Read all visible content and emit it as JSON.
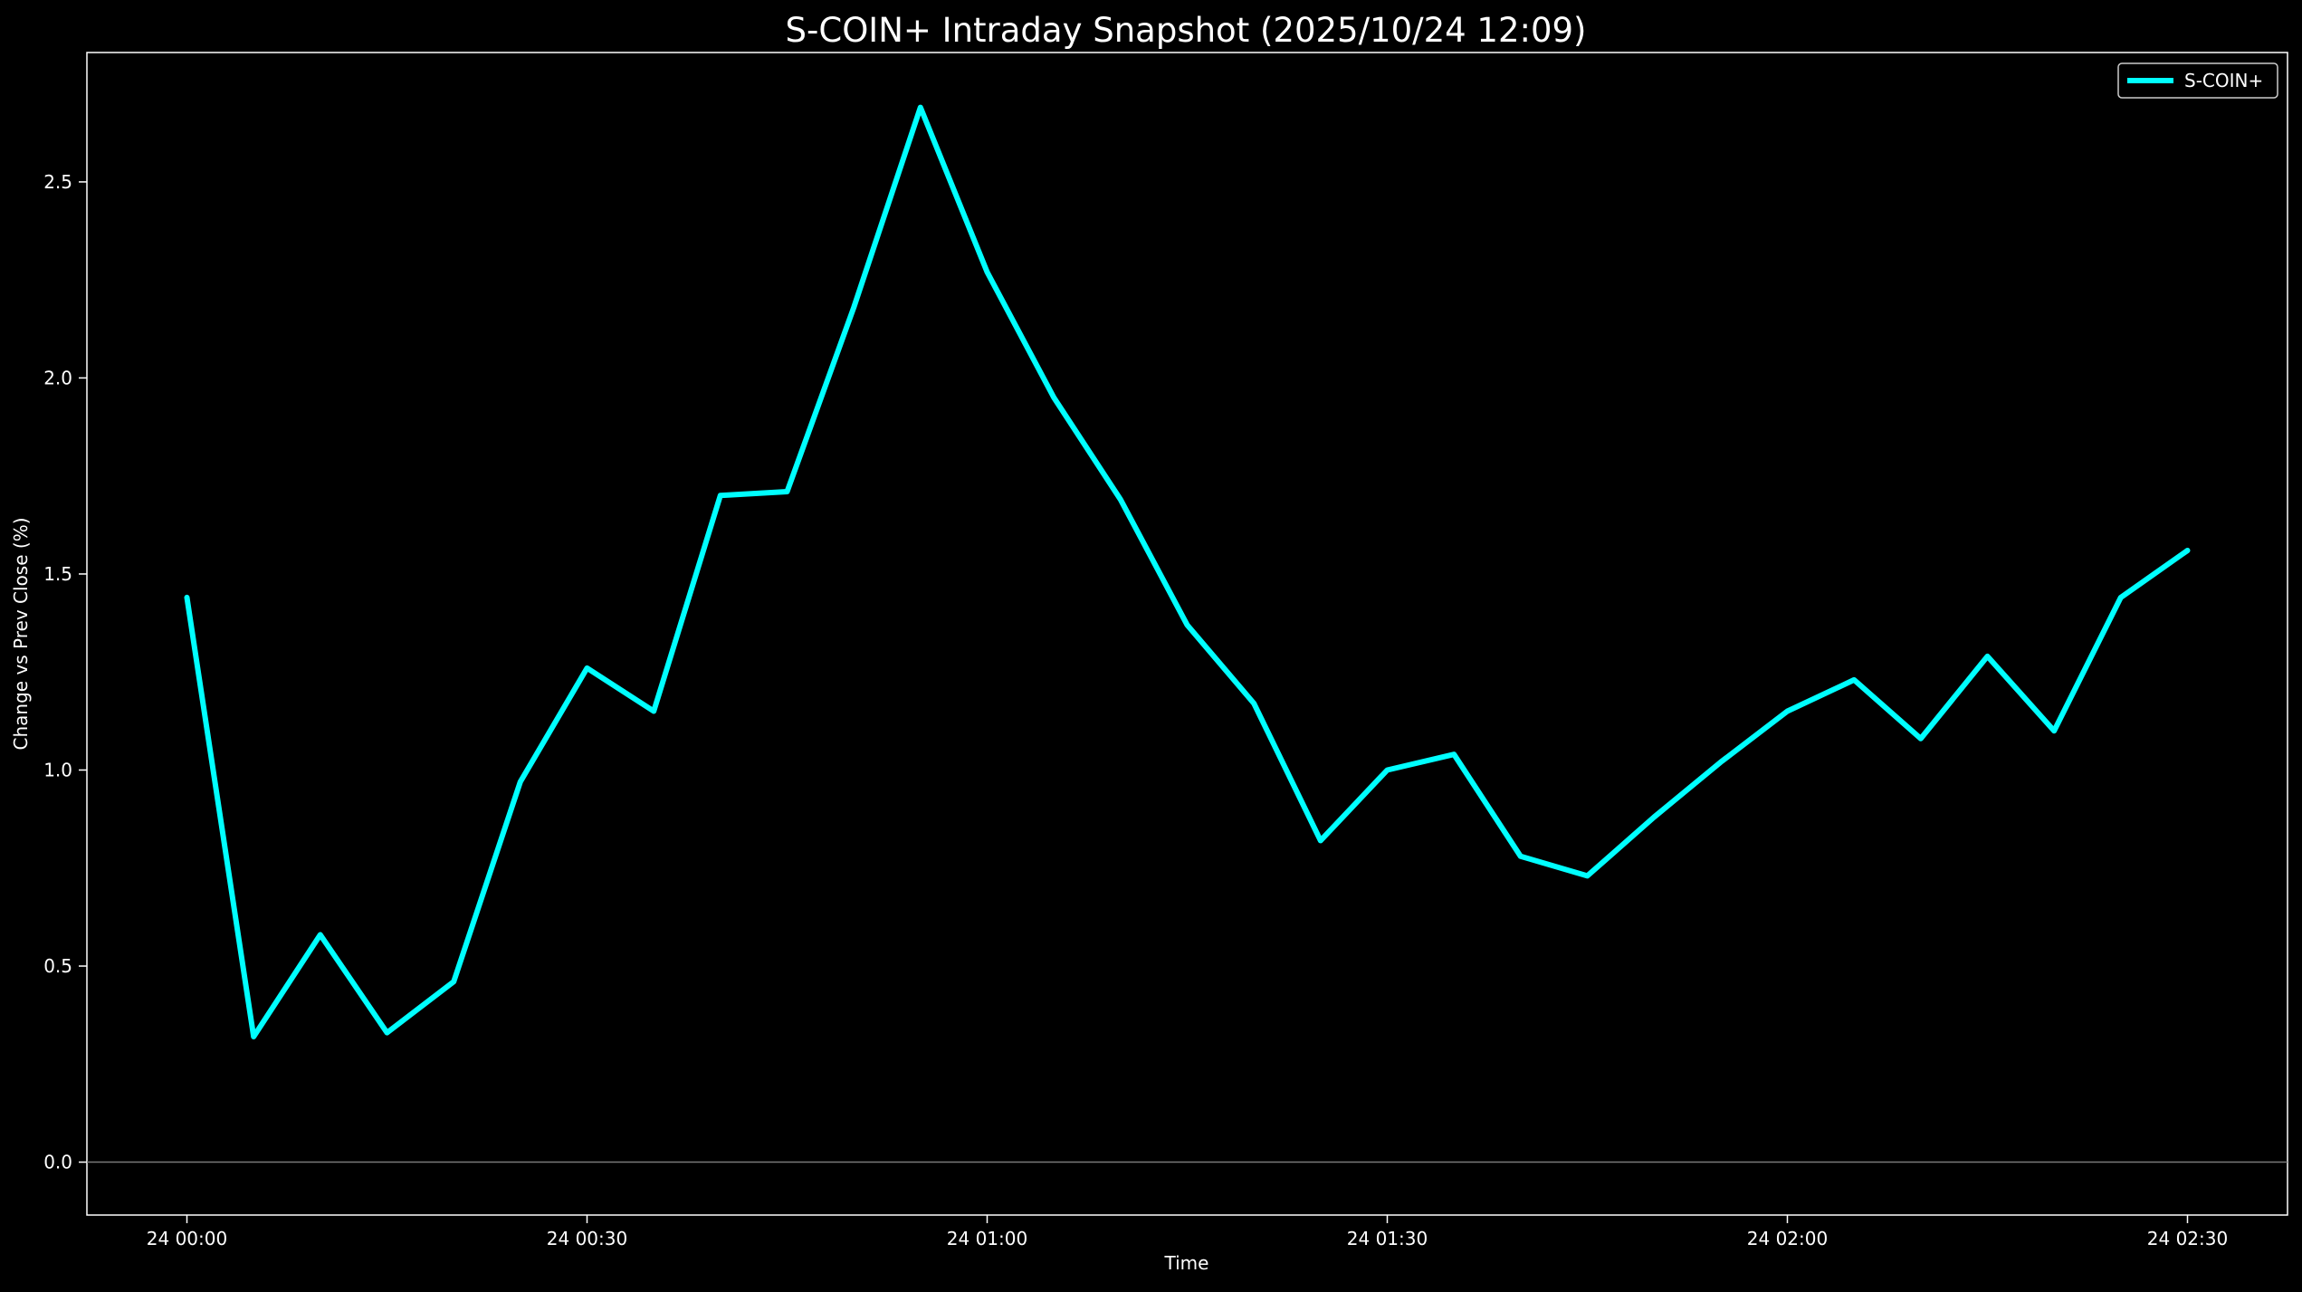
{
  "chart_data": {
    "type": "line",
    "title": "S-COIN+ Intraday Snapshot (2025/10/24 12:09)",
    "xlabel": "Time",
    "ylabel": "Change vs Prev Close (%)",
    "x_ticks": [
      "24 00:00",
      "24 00:30",
      "24 01:00",
      "24 01:30",
      "24 02:00",
      "24 02:30"
    ],
    "y_ticks": [
      "0.0",
      "0.5",
      "1.0",
      "1.5",
      "2.0",
      "2.5"
    ],
    "x_minutes_range": [
      -7.5,
      157.5
    ],
    "ylim": [
      -0.135,
      2.83
    ],
    "reference_line": 0,
    "grid": false,
    "legend_position": "top-right",
    "background_color": "#000000",
    "axis_color": "#ffffff",
    "reference_line_color": "#7a7a7a",
    "series": [
      {
        "name": "S-COIN+",
        "color": "#00ffff",
        "x": [
          "00:00",
          "00:05",
          "00:10",
          "00:15",
          "00:20",
          "00:25",
          "00:30",
          "00:35",
          "00:40",
          "00:45",
          "00:50",
          "00:55",
          "01:00",
          "01:05",
          "01:10",
          "01:15",
          "01:20",
          "01:25",
          "01:30",
          "01:35",
          "01:40",
          "01:45",
          "01:50",
          "01:55",
          "02:00",
          "02:05",
          "02:10",
          "02:15",
          "02:20",
          "02:25",
          "02:30"
        ],
        "values": [
          1.44,
          0.32,
          0.58,
          0.33,
          0.46,
          0.97,
          1.26,
          1.15,
          1.7,
          1.71,
          2.18,
          2.69,
          2.27,
          1.95,
          1.69,
          1.37,
          1.17,
          0.82,
          1.0,
          1.04,
          0.78,
          0.73,
          0.88,
          1.02,
          1.15,
          1.23,
          1.08,
          1.29,
          1.1,
          1.44,
          1.56
        ]
      }
    ]
  }
}
